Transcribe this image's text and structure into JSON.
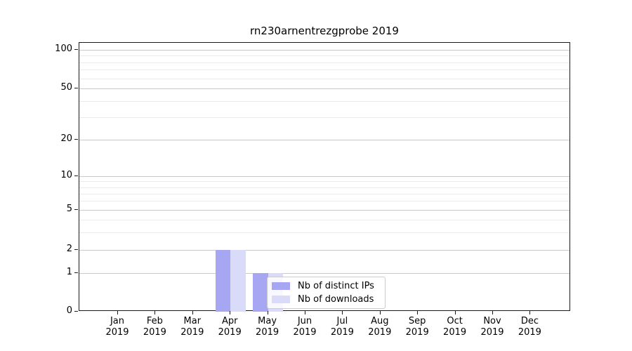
{
  "chart_data": {
    "type": "bar",
    "title": "rn230arnentrezgprobe 2019",
    "scale_y": "symlog",
    "categories": [
      "Jan",
      "Feb",
      "Mar",
      "Apr",
      "May",
      "Jun",
      "Jul",
      "Aug",
      "Sep",
      "Oct",
      "Nov",
      "Dec"
    ],
    "category_year": "2019",
    "series": [
      {
        "name": "Nb of distinct IPs",
        "color": "#a6a6f3",
        "values": [
          0,
          0,
          0,
          2,
          1,
          0,
          0,
          0,
          0,
          0,
          0,
          0
        ]
      },
      {
        "name": "Nb of downloads",
        "color": "#dadaf9",
        "values": [
          0,
          0,
          0,
          2,
          1,
          0,
          0,
          0,
          0,
          0,
          0,
          0
        ]
      }
    ],
    "y_ticks": [
      0,
      1,
      2,
      5,
      10,
      20,
      50,
      100
    ],
    "y_minor_gridlines": [
      3,
      4,
      6,
      7,
      8,
      9,
      30,
      40,
      60,
      70,
      80,
      90
    ],
    "ylim": [
      0,
      113
    ],
    "xlabel": "",
    "ylabel": "",
    "grid": "on",
    "legend_position": "inside lower-center"
  },
  "colors": {
    "major_grid": "#c9c9c9",
    "minor_grid": "#ebebeb",
    "axis": "#1a1a1a",
    "text": "#000000",
    "legend_border": "#cccccc",
    "legend_bg": "rgba(255,255,255,0.8)"
  }
}
